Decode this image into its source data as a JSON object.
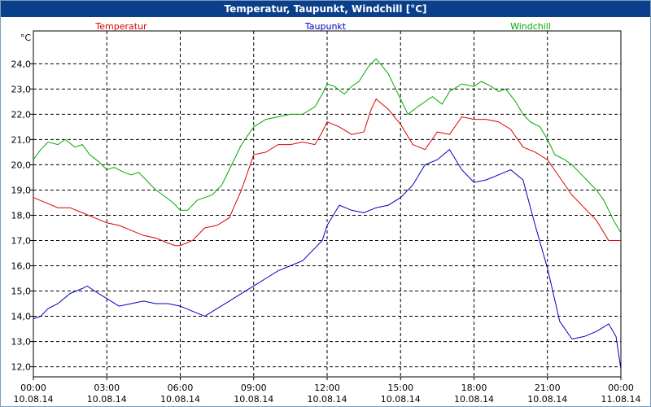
{
  "window": {
    "title": "Temperatur, Taupunkt, Windchill [°C]"
  },
  "colors": {
    "titlebar": "#0a3f8c",
    "grid": "#000000"
  },
  "chart_data": {
    "type": "line",
    "title": "Temperatur, Taupunkt, Windchill [°C]",
    "ylabel": "°C",
    "ylim": [
      11.6,
      25.3
    ],
    "yticks": [
      24.0,
      23.0,
      22.0,
      21.0,
      20.0,
      19.0,
      18.0,
      17.0,
      16.0,
      15.0,
      14.0,
      13.0,
      12.0
    ],
    "ytick_labels": [
      "24,0",
      "23,0",
      "22,0",
      "21,0",
      "20,0",
      "19,0",
      "18,0",
      "17,0",
      "16,0",
      "15,0",
      "14,0",
      "13,0",
      "12,0"
    ],
    "xlim": [
      0,
      24
    ],
    "xticks": [
      0,
      3,
      6,
      9,
      12,
      15,
      18,
      21,
      24
    ],
    "xtick_labels": [
      [
        "00:00",
        "10.08.14"
      ],
      [
        "03:00",
        "10.08.14"
      ],
      [
        "06:00",
        "10.08.14"
      ],
      [
        "09:00",
        "10.08.14"
      ],
      [
        "12:00",
        "10.08.14"
      ],
      [
        "15:00",
        "10.08.14"
      ],
      [
        "18:00",
        "10.08.14"
      ],
      [
        "21:00",
        "10.08.14"
      ],
      [
        "00:00",
        "11.08.14"
      ]
    ],
    "grid": true,
    "legend_position": "top",
    "series": [
      {
        "name": "Temperatur",
        "color": "#dd0000",
        "x": [
          0,
          0.5,
          1,
          1.5,
          2,
          2.5,
          3,
          3.5,
          4,
          4.5,
          5,
          5.5,
          5.8,
          6,
          6.5,
          7,
          7.5,
          8,
          8.5,
          9,
          9.5,
          10,
          10.5,
          11,
          11.5,
          11.8,
          12,
          12.5,
          13,
          13.5,
          13.8,
          14,
          14.5,
          15,
          15.5,
          16,
          16.5,
          17,
          17.5,
          18,
          18.5,
          19,
          19.5,
          20,
          20.5,
          21,
          21.5,
          22,
          22.5,
          23,
          23.5,
          24
        ],
        "y": [
          18.7,
          18.5,
          18.3,
          18.3,
          18.1,
          17.9,
          17.7,
          17.6,
          17.4,
          17.2,
          17.1,
          16.9,
          16.8,
          16.8,
          17.0,
          17.5,
          17.6,
          17.9,
          19.0,
          20.4,
          20.5,
          20.8,
          20.8,
          20.9,
          20.8,
          21.3,
          21.7,
          21.5,
          21.2,
          21.3,
          22.2,
          22.6,
          22.2,
          21.6,
          20.8,
          20.6,
          21.3,
          21.2,
          21.9,
          21.8,
          21.8,
          21.7,
          21.4,
          20.7,
          20.5,
          20.2,
          19.5,
          18.8,
          18.3,
          17.8,
          17.0,
          17.0
        ]
      },
      {
        "name": "Taupunkt",
        "color": "#0000bb",
        "x": [
          0,
          0.3,
          0.6,
          1,
          1.5,
          2,
          2.2,
          2.5,
          3,
          3.5,
          4,
          4.5,
          5,
          5.5,
          6,
          6.5,
          7,
          7.5,
          8,
          8.5,
          9,
          9.5,
          10,
          10.5,
          11,
          11.5,
          11.8,
          12,
          12.5,
          13,
          13.5,
          14,
          14.5,
          15,
          15.5,
          16,
          16.5,
          17,
          17.5,
          18,
          18.5,
          19,
          19.5,
          20,
          20.5,
          21,
          21.5,
          22,
          22.5,
          23,
          23.5,
          23.8,
          24
        ],
        "y": [
          13.9,
          14.0,
          14.3,
          14.5,
          14.9,
          15.1,
          15.2,
          15.0,
          14.7,
          14.4,
          14.5,
          14.6,
          14.5,
          14.5,
          14.4,
          14.2,
          14.0,
          14.3,
          14.6,
          14.9,
          15.2,
          15.5,
          15.8,
          16.0,
          16.2,
          16.7,
          17.0,
          17.6,
          18.4,
          18.2,
          18.1,
          18.3,
          18.4,
          18.7,
          19.2,
          20.0,
          20.2,
          20.6,
          19.8,
          19.3,
          19.4,
          19.6,
          19.8,
          19.4,
          17.6,
          15.9,
          13.8,
          13.1,
          13.2,
          13.4,
          13.7,
          13.2,
          11.9
        ]
      },
      {
        "name": "Windchill",
        "color": "#00aa00",
        "x": [
          0,
          0.3,
          0.6,
          1,
          1.3,
          1.7,
          2,
          2.3,
          2.7,
          3,
          3.3,
          3.7,
          4,
          4.3,
          4.7,
          5,
          5.3,
          5.7,
          6,
          6.3,
          6.7,
          7,
          7.3,
          7.7,
          8,
          8.5,
          9,
          9.5,
          10,
          10.5,
          11,
          11.5,
          11.8,
          12,
          12.3,
          12.7,
          13,
          13.3,
          13.7,
          14,
          14.5,
          15,
          15.3,
          15.7,
          16,
          16.3,
          16.7,
          17,
          17.5,
          18,
          18.3,
          18.7,
          19,
          19.3,
          19.7,
          20,
          20.3,
          20.7,
          21,
          21.3,
          21.7,
          22,
          22.3,
          22.7,
          23,
          23.3,
          23.7,
          24
        ],
        "y": [
          20.2,
          20.6,
          20.9,
          20.8,
          21.0,
          20.7,
          20.8,
          20.4,
          20.1,
          19.8,
          19.9,
          19.7,
          19.6,
          19.7,
          19.3,
          19.0,
          18.8,
          18.5,
          18.2,
          18.2,
          18.6,
          18.7,
          18.8,
          19.2,
          19.8,
          20.8,
          21.5,
          21.8,
          21.9,
          22.0,
          22.0,
          22.3,
          22.8,
          23.2,
          23.1,
          22.8,
          23.1,
          23.3,
          23.9,
          24.2,
          23.6,
          22.6,
          22.0,
          22.3,
          22.5,
          22.7,
          22.4,
          22.9,
          23.2,
          23.1,
          23.3,
          23.1,
          22.9,
          23.0,
          22.5,
          22.0,
          21.7,
          21.5,
          21.0,
          20.4,
          20.2,
          20.0,
          19.7,
          19.3,
          19.0,
          18.6,
          17.8,
          17.3
        ]
      }
    ]
  }
}
